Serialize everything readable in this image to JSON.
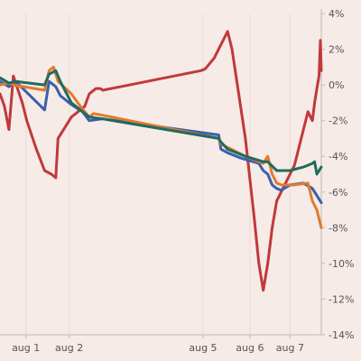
{
  "chart_data": {
    "type": "line",
    "y_axis": {
      "position": "right",
      "unit": "%",
      "range": [
        -14,
        4
      ],
      "ticks": [
        {
          "value": 4,
          "label": "4%"
        },
        {
          "value": 2,
          "label": "2%"
        },
        {
          "value": 0,
          "label": "0%"
        },
        {
          "value": -2,
          "label": "-2%"
        },
        {
          "value": -4,
          "label": "-4%"
        },
        {
          "value": -6,
          "label": "-6%"
        },
        {
          "value": -8,
          "label": "-8%"
        },
        {
          "value": -10,
          "label": "-10%"
        },
        {
          "value": -12,
          "label": "-12%"
        },
        {
          "value": -14,
          "label": "-14%"
        }
      ]
    },
    "x_axis": {
      "type": "time",
      "range": [
        0.0,
        7.2
      ],
      "ticks": [
        {
          "value": 0.58,
          "label": "aug 1"
        },
        {
          "value": 1.55,
          "label": "aug 2"
        },
        {
          "value": 4.55,
          "label": "aug 5"
        },
        {
          "value": 5.6,
          "label": "aug 6"
        },
        {
          "value": 6.5,
          "label": "aug 7"
        }
      ]
    },
    "grid": {
      "vertical": true,
      "horizontal": false
    },
    "colors": {
      "background": "#f6ebe6",
      "grid": "#ecdcd4",
      "axis": "#bbbbbb",
      "tick_text": "#555555"
    },
    "series": [
      {
        "color": "#c0393b",
        "points": [
          [
            0.0,
            -0.5
          ],
          [
            0.1,
            -1.2
          ],
          [
            0.2,
            -2.5
          ],
          [
            0.3,
            0.5
          ],
          [
            0.5,
            -1.0
          ],
          [
            0.6,
            -2.0
          ],
          [
            0.8,
            -3.5
          ],
          [
            1.0,
            -4.8
          ],
          [
            1.15,
            -5.0
          ],
          [
            1.25,
            -5.2
          ],
          [
            1.3,
            -3.0
          ],
          [
            1.6,
            -1.8
          ],
          [
            1.9,
            -1.2
          ],
          [
            2.0,
            -0.5
          ],
          [
            2.15,
            -0.2
          ],
          [
            2.25,
            -0.2
          ],
          [
            2.3,
            -0.3
          ],
          [
            4.5,
            0.8
          ],
          [
            4.6,
            0.9
          ],
          [
            4.8,
            1.5
          ],
          [
            5.0,
            2.5
          ],
          [
            5.1,
            3.0
          ],
          [
            5.2,
            2.0
          ],
          [
            5.5,
            -3.0
          ],
          [
            5.7,
            -7.5
          ],
          [
            5.8,
            -10.0
          ],
          [
            5.9,
            -11.5
          ],
          [
            6.0,
            -10.0
          ],
          [
            6.1,
            -8.0
          ],
          [
            6.2,
            -6.5
          ],
          [
            6.4,
            -5.5
          ],
          [
            6.6,
            -4.5
          ],
          [
            6.8,
            -2.5
          ],
          [
            6.9,
            -1.5
          ],
          [
            7.0,
            -2.0
          ],
          [
            7.05,
            -1.0
          ],
          [
            7.1,
            -0.2
          ],
          [
            7.15,
            0.5
          ],
          [
            7.18,
            2.5
          ],
          [
            7.2,
            0.8
          ]
        ]
      },
      {
        "color": "#3a5fad",
        "points": [
          [
            0.0,
            0.2
          ],
          [
            0.2,
            -0.1
          ],
          [
            0.35,
            0.2
          ],
          [
            1.0,
            -1.4
          ],
          [
            1.1,
            0.2
          ],
          [
            1.25,
            -0.1
          ],
          [
            1.35,
            -0.6
          ],
          [
            1.6,
            -1.1
          ],
          [
            1.85,
            -1.5
          ],
          [
            2.0,
            -2.0
          ],
          [
            2.3,
            -1.9
          ],
          [
            4.9,
            -2.8
          ],
          [
            4.95,
            -3.6
          ],
          [
            5.1,
            -3.8
          ],
          [
            5.4,
            -4.1
          ],
          [
            5.8,
            -4.4
          ],
          [
            5.9,
            -4.8
          ],
          [
            6.0,
            -5.0
          ],
          [
            6.1,
            -5.6
          ],
          [
            6.2,
            -5.8
          ],
          [
            6.3,
            -5.9
          ],
          [
            6.5,
            -5.6
          ],
          [
            6.8,
            -5.5
          ],
          [
            7.0,
            -5.8
          ],
          [
            7.1,
            -6.2
          ],
          [
            7.2,
            -6.6
          ]
        ]
      },
      {
        "color": "#e07b2e",
        "points": [
          [
            0.0,
            0.0
          ],
          [
            0.2,
            0.1
          ],
          [
            0.3,
            0.0
          ],
          [
            1.0,
            -0.3
          ],
          [
            1.1,
            0.8
          ],
          [
            1.2,
            1.0
          ],
          [
            1.3,
            0.2
          ],
          [
            1.6,
            -0.5
          ],
          [
            1.8,
            -1.2
          ],
          [
            2.0,
            -1.8
          ],
          [
            2.1,
            -1.6
          ],
          [
            2.3,
            -1.7
          ],
          [
            4.9,
            -3.0
          ],
          [
            4.95,
            -3.3
          ],
          [
            5.1,
            -3.5
          ],
          [
            5.5,
            -4.0
          ],
          [
            5.9,
            -4.4
          ],
          [
            6.0,
            -4.0
          ],
          [
            6.1,
            -5.0
          ],
          [
            6.2,
            -5.5
          ],
          [
            6.3,
            -5.6
          ],
          [
            6.6,
            -5.6
          ],
          [
            6.9,
            -5.5
          ],
          [
            7.0,
            -6.5
          ],
          [
            7.1,
            -7.0
          ],
          [
            7.15,
            -7.5
          ],
          [
            7.2,
            -8.0
          ]
        ]
      },
      {
        "color": "#1f6b5e",
        "points": [
          [
            0.0,
            0.4
          ],
          [
            0.2,
            0.1
          ],
          [
            0.35,
            0.2
          ],
          [
            1.0,
            0.0
          ],
          [
            1.1,
            0.6
          ],
          [
            1.25,
            0.8
          ],
          [
            1.35,
            0.2
          ],
          [
            1.6,
            -1.0
          ],
          [
            1.8,
            -1.4
          ],
          [
            2.0,
            -1.8
          ],
          [
            2.3,
            -1.9
          ],
          [
            4.9,
            -3.0
          ],
          [
            4.95,
            -3.2
          ],
          [
            5.1,
            -3.6
          ],
          [
            5.5,
            -4.0
          ],
          [
            5.9,
            -4.3
          ],
          [
            6.0,
            -4.3
          ],
          [
            6.2,
            -4.8
          ],
          [
            6.5,
            -4.8
          ],
          [
            6.8,
            -4.6
          ],
          [
            7.0,
            -4.4
          ],
          [
            7.05,
            -4.3
          ],
          [
            7.1,
            -5.0
          ],
          [
            7.2,
            -4.6
          ]
        ]
      }
    ]
  }
}
